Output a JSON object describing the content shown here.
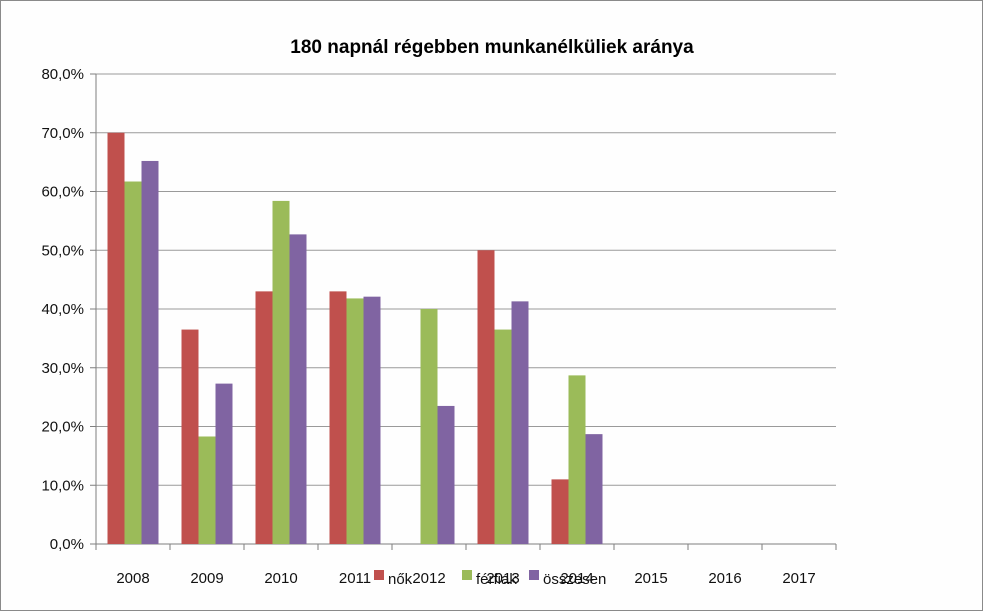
{
  "chart_data": {
    "type": "bar",
    "title": "180 napnál régebben munkanélküliek aránya",
    "categories": [
      "2008",
      "2009",
      "2010",
      "2011",
      "2012",
      "2013",
      "2014",
      "2015",
      "2016",
      "2017"
    ],
    "series": [
      {
        "name": "nők",
        "color": "#c0504d",
        "values": [
          70.0,
          36.5,
          43.0,
          43.0,
          null,
          50.0,
          11.0,
          null,
          null,
          null
        ]
      },
      {
        "name": "férfiak",
        "color": "#9bbb59",
        "values": [
          61.7,
          18.3,
          58.4,
          41.8,
          40.0,
          36.5,
          28.7,
          null,
          null,
          null
        ]
      },
      {
        "name": "összesen",
        "color": "#8064a2",
        "values": [
          65.2,
          27.3,
          52.7,
          42.1,
          23.5,
          41.3,
          18.7,
          null,
          null,
          null
        ]
      }
    ],
    "yticks": [
      "0,0%",
      "10,0%",
      "20,0%",
      "30,0%",
      "40,0%",
      "50,0%",
      "60,0%",
      "70,0%",
      "80,0%"
    ],
    "ylim": [
      0,
      80
    ],
    "grid": true,
    "legend_position": "bottom"
  }
}
